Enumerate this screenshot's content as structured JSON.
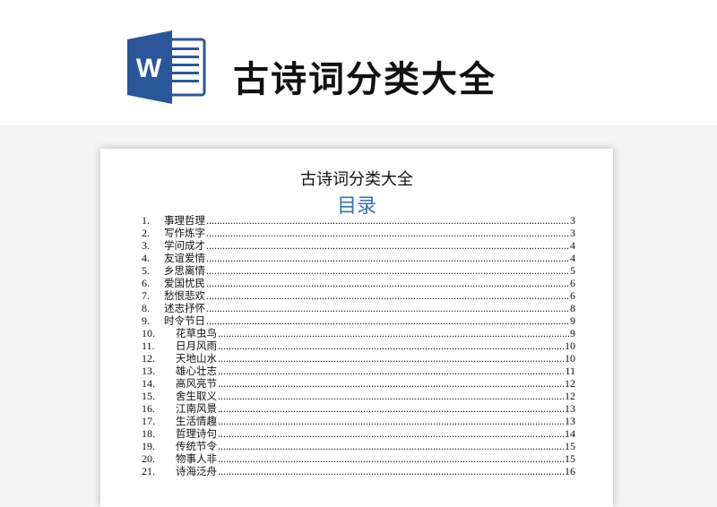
{
  "header": {
    "title": "古诗词分类大全",
    "logo_icon": "word-icon",
    "brand_color": "#2b579a"
  },
  "document": {
    "title": "古诗词分类大全",
    "toc_heading": "目录",
    "toc_color": "#2e74b5",
    "entries": [
      {
        "num": "1.",
        "text": "事理哲理",
        "page": "3"
      },
      {
        "num": "2.",
        "text": "写作炼字",
        "page": "3"
      },
      {
        "num": "3.",
        "text": "学问成才",
        "page": "4"
      },
      {
        "num": "4.",
        "text": "友谊爱情",
        "page": "4"
      },
      {
        "num": "5.",
        "text": "乡思离情",
        "page": "5"
      },
      {
        "num": "6.",
        "text": "爱国忧民",
        "page": "6"
      },
      {
        "num": "7.",
        "text": "愁恨悲欢",
        "page": "6"
      },
      {
        "num": "8.",
        "text": "述志抒怀",
        "page": "8"
      },
      {
        "num": "9.",
        "text": "时令节日",
        "page": "9"
      },
      {
        "num": "10.",
        "text": "花草虫鸟",
        "page": "9"
      },
      {
        "num": "11.",
        "text": "日月风雨",
        "page": "10"
      },
      {
        "num": "12.",
        "text": "天地山水",
        "page": "10"
      },
      {
        "num": "13.",
        "text": "雄心壮志",
        "page": "11"
      },
      {
        "num": "14.",
        "text": "高风亮节",
        "page": "12"
      },
      {
        "num": "15.",
        "text": "舍生取义",
        "page": "12"
      },
      {
        "num": "16.",
        "text": "江南风景",
        "page": "13"
      },
      {
        "num": "17.",
        "text": "生活情趣",
        "page": "13"
      },
      {
        "num": "18.",
        "text": "哲理诗句",
        "page": "14"
      },
      {
        "num": "19.",
        "text": "传统节令",
        "page": "15"
      },
      {
        "num": "20.",
        "text": "物事人非",
        "page": "15"
      },
      {
        "num": "21.",
        "text": "诗海泛舟",
        "page": "16"
      }
    ]
  }
}
